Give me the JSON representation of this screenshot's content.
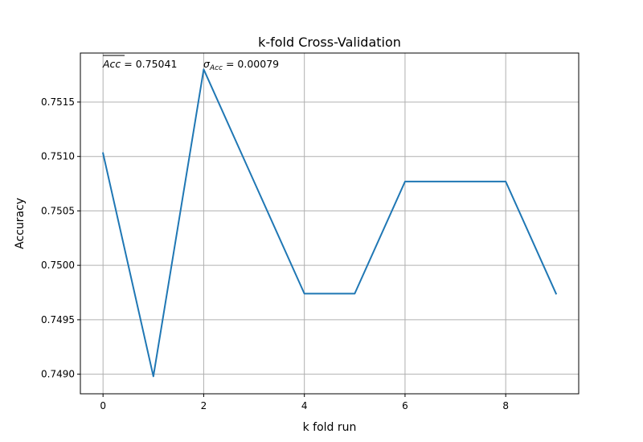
{
  "chart_data": {
    "type": "line",
    "title": "k-fold Cross-Validation",
    "xlabel": "k fold run",
    "ylabel": "Accuracy",
    "x": [
      0,
      1,
      2,
      3,
      4,
      5,
      6,
      7,
      8,
      9
    ],
    "series": [
      {
        "values": [
          0.75103,
          0.74898,
          0.7518,
          0.75077,
          0.74974,
          0.74974,
          0.75077,
          0.75077,
          0.75077,
          0.74974
        ],
        "color": "#1f77b4"
      }
    ],
    "xlim": [
      -0.45,
      9.45
    ],
    "ylim": [
      0.74882,
      0.75195
    ],
    "xticks": [
      0,
      2,
      4,
      6,
      8
    ],
    "xtick_labels": [
      "0",
      "2",
      "4",
      "6",
      "8"
    ],
    "yticks": [
      0.749,
      0.7495,
      0.75,
      0.7505,
      0.751,
      0.7515
    ],
    "ytick_labels": [
      "0.7490",
      "0.7495",
      "0.7500",
      "0.7505",
      "0.7510",
      "0.7515"
    ],
    "grid": true,
    "annotations": {
      "mean_symbol": "Acc",
      "mean_value": " = 0.75041",
      "std_symbol": "σ",
      "std_subscript": "Acc",
      "std_value": " = 0.00079"
    }
  }
}
